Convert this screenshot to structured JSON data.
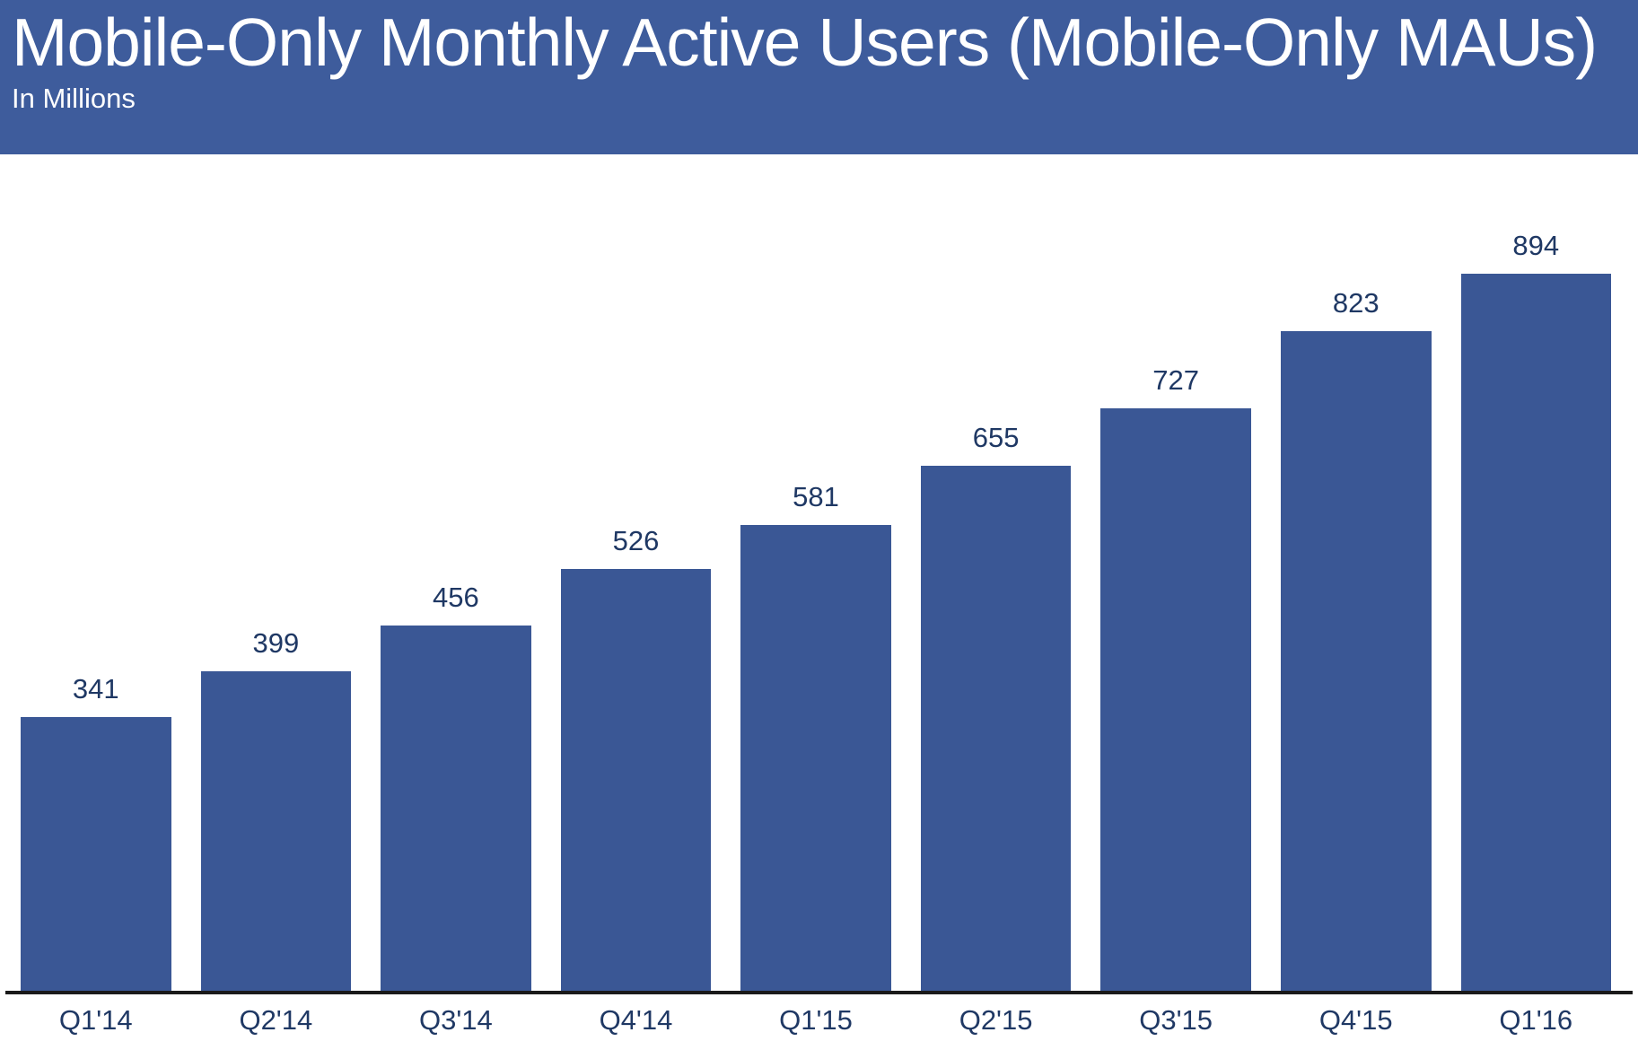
{
  "header": {
    "title": "Mobile-Only Monthly Active Users (Mobile-Only MAUs)",
    "subtitle": "In Millions"
  },
  "chart_data": {
    "type": "bar",
    "title": "Mobile-Only Monthly Active Users (Mobile-Only MAUs)",
    "subtitle": "In Millions",
    "units": "Millions",
    "categories": [
      "Q1'14",
      "Q2'14",
      "Q3'14",
      "Q4'14",
      "Q1'15",
      "Q2'15",
      "Q3'15",
      "Q4'15",
      "Q1'16"
    ],
    "values": [
      341,
      399,
      456,
      526,
      581,
      655,
      727,
      823,
      894
    ],
    "xlabel": "",
    "ylabel": "In Millions",
    "ylim": [
      0,
      1030
    ],
    "grid": false,
    "legend": "none",
    "value_labels": true,
    "colors": {
      "header_bg": "#3e5c9c",
      "bar": "#3a5795",
      "label": "#1f3864",
      "axis": "#1a1a1a",
      "title_text": "#ffffff",
      "background": "#ffffff"
    }
  }
}
